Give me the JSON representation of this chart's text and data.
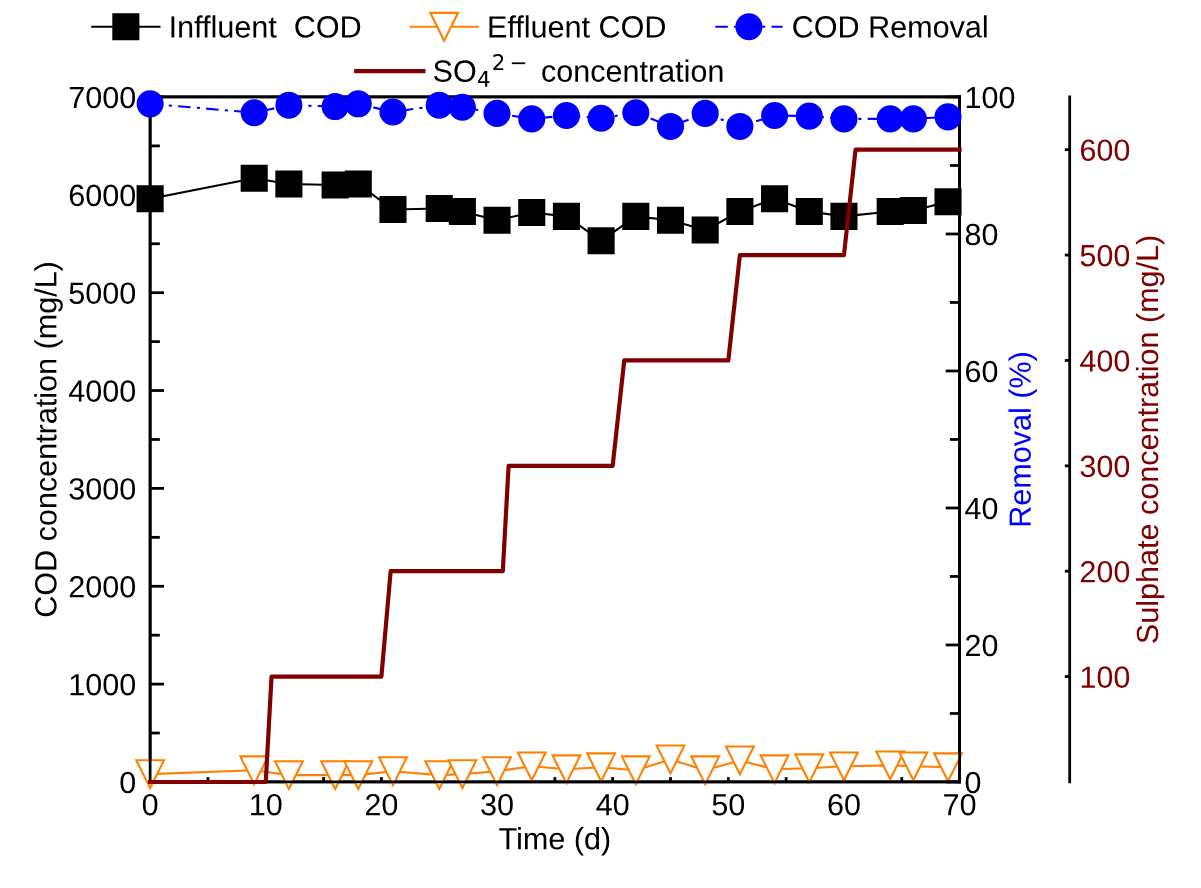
{
  "chart_data": {
    "type": "line",
    "xlabel": "Time (d)",
    "ylabel": "COD concentration (mg/L)",
    "y2label": "Removal (%)",
    "y3label": "Sulphate concentration (mg/L)",
    "xlim": [
      0,
      70
    ],
    "xticks": [
      0,
      {
        "value": 5,
        "label": null
      },
      10,
      {
        "value": 15,
        "label": null
      },
      20,
      {
        "value": 25,
        "label": null
      },
      30,
      {
        "value": 35,
        "label": null
      },
      40,
      {
        "value": 45,
        "label": null
      },
      50,
      {
        "value": 55,
        "label": null
      },
      60,
      {
        "value": 65,
        "label": null
      },
      70
    ],
    "ylim": [
      0,
      7000
    ],
    "yticks": [
      0,
      {
        "value": 500,
        "label": null
      },
      1000,
      {
        "value": 1500,
        "label": null
      },
      2000,
      {
        "value": 2500,
        "label": null
      },
      3000,
      {
        "value": 3500,
        "label": null
      },
      4000,
      {
        "value": 4500,
        "label": null
      },
      5000,
      {
        "value": 5500,
        "label": null
      },
      6000,
      {
        "value": 6500,
        "label": null
      },
      7000
    ],
    "y2lim": [
      0,
      100
    ],
    "y2ticks": [
      0,
      {
        "value": 10,
        "label": null
      },
      20,
      {
        "value": 30,
        "label": null
      },
      40,
      {
        "value": 50,
        "label": null
      },
      60,
      {
        "value": 70,
        "label": null
      },
      80,
      {
        "value": 90,
        "label": null
      },
      100
    ],
    "y3lim": [
      0,
      650
    ],
    "y3ticks": [
      100,
      200,
      300,
      400,
      500,
      600
    ],
    "x": [
      0,
      9,
      12,
      16,
      18,
      21,
      25,
      27,
      30,
      33,
      36,
      39,
      42,
      45,
      48,
      51,
      54,
      57,
      60,
      64,
      66,
      69
    ],
    "legend": "top",
    "grid": false,
    "series": [
      {
        "name": "Inffluent  COD",
        "color": "#000000",
        "marker": "square",
        "line_style": "solid",
        "values": [
          5960,
          6170,
          6110,
          6100,
          6110,
          5850,
          5860,
          5830,
          5740,
          5820,
          5780,
          5530,
          5780,
          5740,
          5640,
          5830,
          5960,
          5830,
          5780,
          5830,
          5840,
          5930
        ]
      },
      {
        "name": "Effluent COD",
        "color": "#ff8000",
        "marker": "triangle",
        "line_style": "solid",
        "values": [
          80,
          120,
          70,
          70,
          70,
          110,
          70,
          80,
          110,
          160,
          130,
          150,
          120,
          230,
          120,
          220,
          130,
          140,
          160,
          170,
          160,
          150
        ]
      },
      {
        "name": "COD Removal",
        "color": "#0000ff",
        "marker": "circle",
        "line_style": "dashed",
        "axis": "y2",
        "values": [
          99.0,
          97.7,
          98.8,
          98.6,
          99.0,
          97.8,
          98.8,
          98.5,
          97.6,
          96.8,
          97.3,
          96.9,
          97.7,
          95.7,
          97.6,
          95.7,
          97.3,
          97.2,
          96.8,
          96.8,
          96.8,
          97.1
        ]
      },
      {
        "name": "SO$_{4}$$^{2−}$ concentration",
        "color": "#800000",
        "marker": "none",
        "line_style": "solid",
        "axis": "y3",
        "x": [
          0,
          10,
          10.5,
          20,
          20.8,
          30.5,
          31,
          40,
          41,
          50,
          51,
          60,
          61,
          70
        ],
        "values": [
          0,
          0,
          100,
          100,
          200,
          200,
          300,
          300,
          400,
          400,
          500,
          500,
          600,
          600
        ]
      }
    ]
  }
}
